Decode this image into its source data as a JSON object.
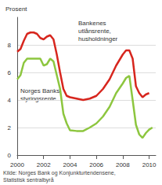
{
  "chart_data": {
    "type": "line",
    "y_label": "Prosent",
    "source": "Kilde: Norges Bank og Konjunkturtendensene,\nStatistisk sentralbyrå",
    "annotations": [
      "Bankenes\nutlånsrente,\nhusholdninger",
      "Norges Banks\nstyringsrente"
    ],
    "xlim": [
      2000,
      2010.5
    ],
    "xticks": [
      2000,
      2002,
      2004,
      2006,
      2008,
      2010
    ],
    "ylim": [
      0,
      10
    ],
    "yticks": [
      0,
      2,
      4,
      6,
      8
    ],
    "grid": true,
    "series": [
      {
        "name": "Bankenes utlånsrente, husholdninger",
        "color": "#d7261e",
        "x": [
          2000,
          2000.25,
          2000.5,
          2000.75,
          2001,
          2001.25,
          2001.5,
          2001.75,
          2002,
          2002.25,
          2002.5,
          2002.75,
          2003,
          2003.25,
          2003.5,
          2003.75,
          2004,
          2004.5,
          2005,
          2005.5,
          2006,
          2006.5,
          2007,
          2007.5,
          2008,
          2008.25,
          2008.5,
          2008.75,
          2009,
          2009.25,
          2009.5,
          2009.75,
          2010
        ],
        "values": [
          7.5,
          7.7,
          8.3,
          8.8,
          8.9,
          8.9,
          8.8,
          8.5,
          8.4,
          8.6,
          8.7,
          8.4,
          7.3,
          6.0,
          4.8,
          4.3,
          4.2,
          4.1,
          4.0,
          4.1,
          4.3,
          4.8,
          5.5,
          6.5,
          7.3,
          7.6,
          7.6,
          7.0,
          5.0,
          4.5,
          4.2,
          4.4,
          4.5
        ]
      },
      {
        "name": "Norges Banks styringsrente",
        "color": "#8dc63f",
        "x": [
          2000,
          2000.25,
          2000.5,
          2000.75,
          2001,
          2001.25,
          2001.5,
          2001.75,
          2002,
          2002.25,
          2002.5,
          2002.75,
          2003,
          2003.25,
          2003.5,
          2003.75,
          2004,
          2004.5,
          2005,
          2005.5,
          2006,
          2006.5,
          2007,
          2007.5,
          2008,
          2008.25,
          2008.5,
          2008.75,
          2009,
          2009.25,
          2009.5,
          2009.75,
          2010,
          2010.25
        ],
        "values": [
          5.5,
          5.8,
          6.7,
          7.0,
          7.0,
          7.0,
          7.0,
          7.0,
          6.5,
          6.6,
          7.0,
          6.8,
          5.8,
          4.8,
          3.0,
          2.3,
          1.8,
          1.75,
          1.75,
          2.0,
          2.3,
          2.8,
          3.5,
          4.5,
          5.2,
          5.6,
          5.75,
          4.0,
          2.2,
          1.5,
          1.25,
          1.6,
          1.85,
          2.0
        ]
      }
    ]
  }
}
